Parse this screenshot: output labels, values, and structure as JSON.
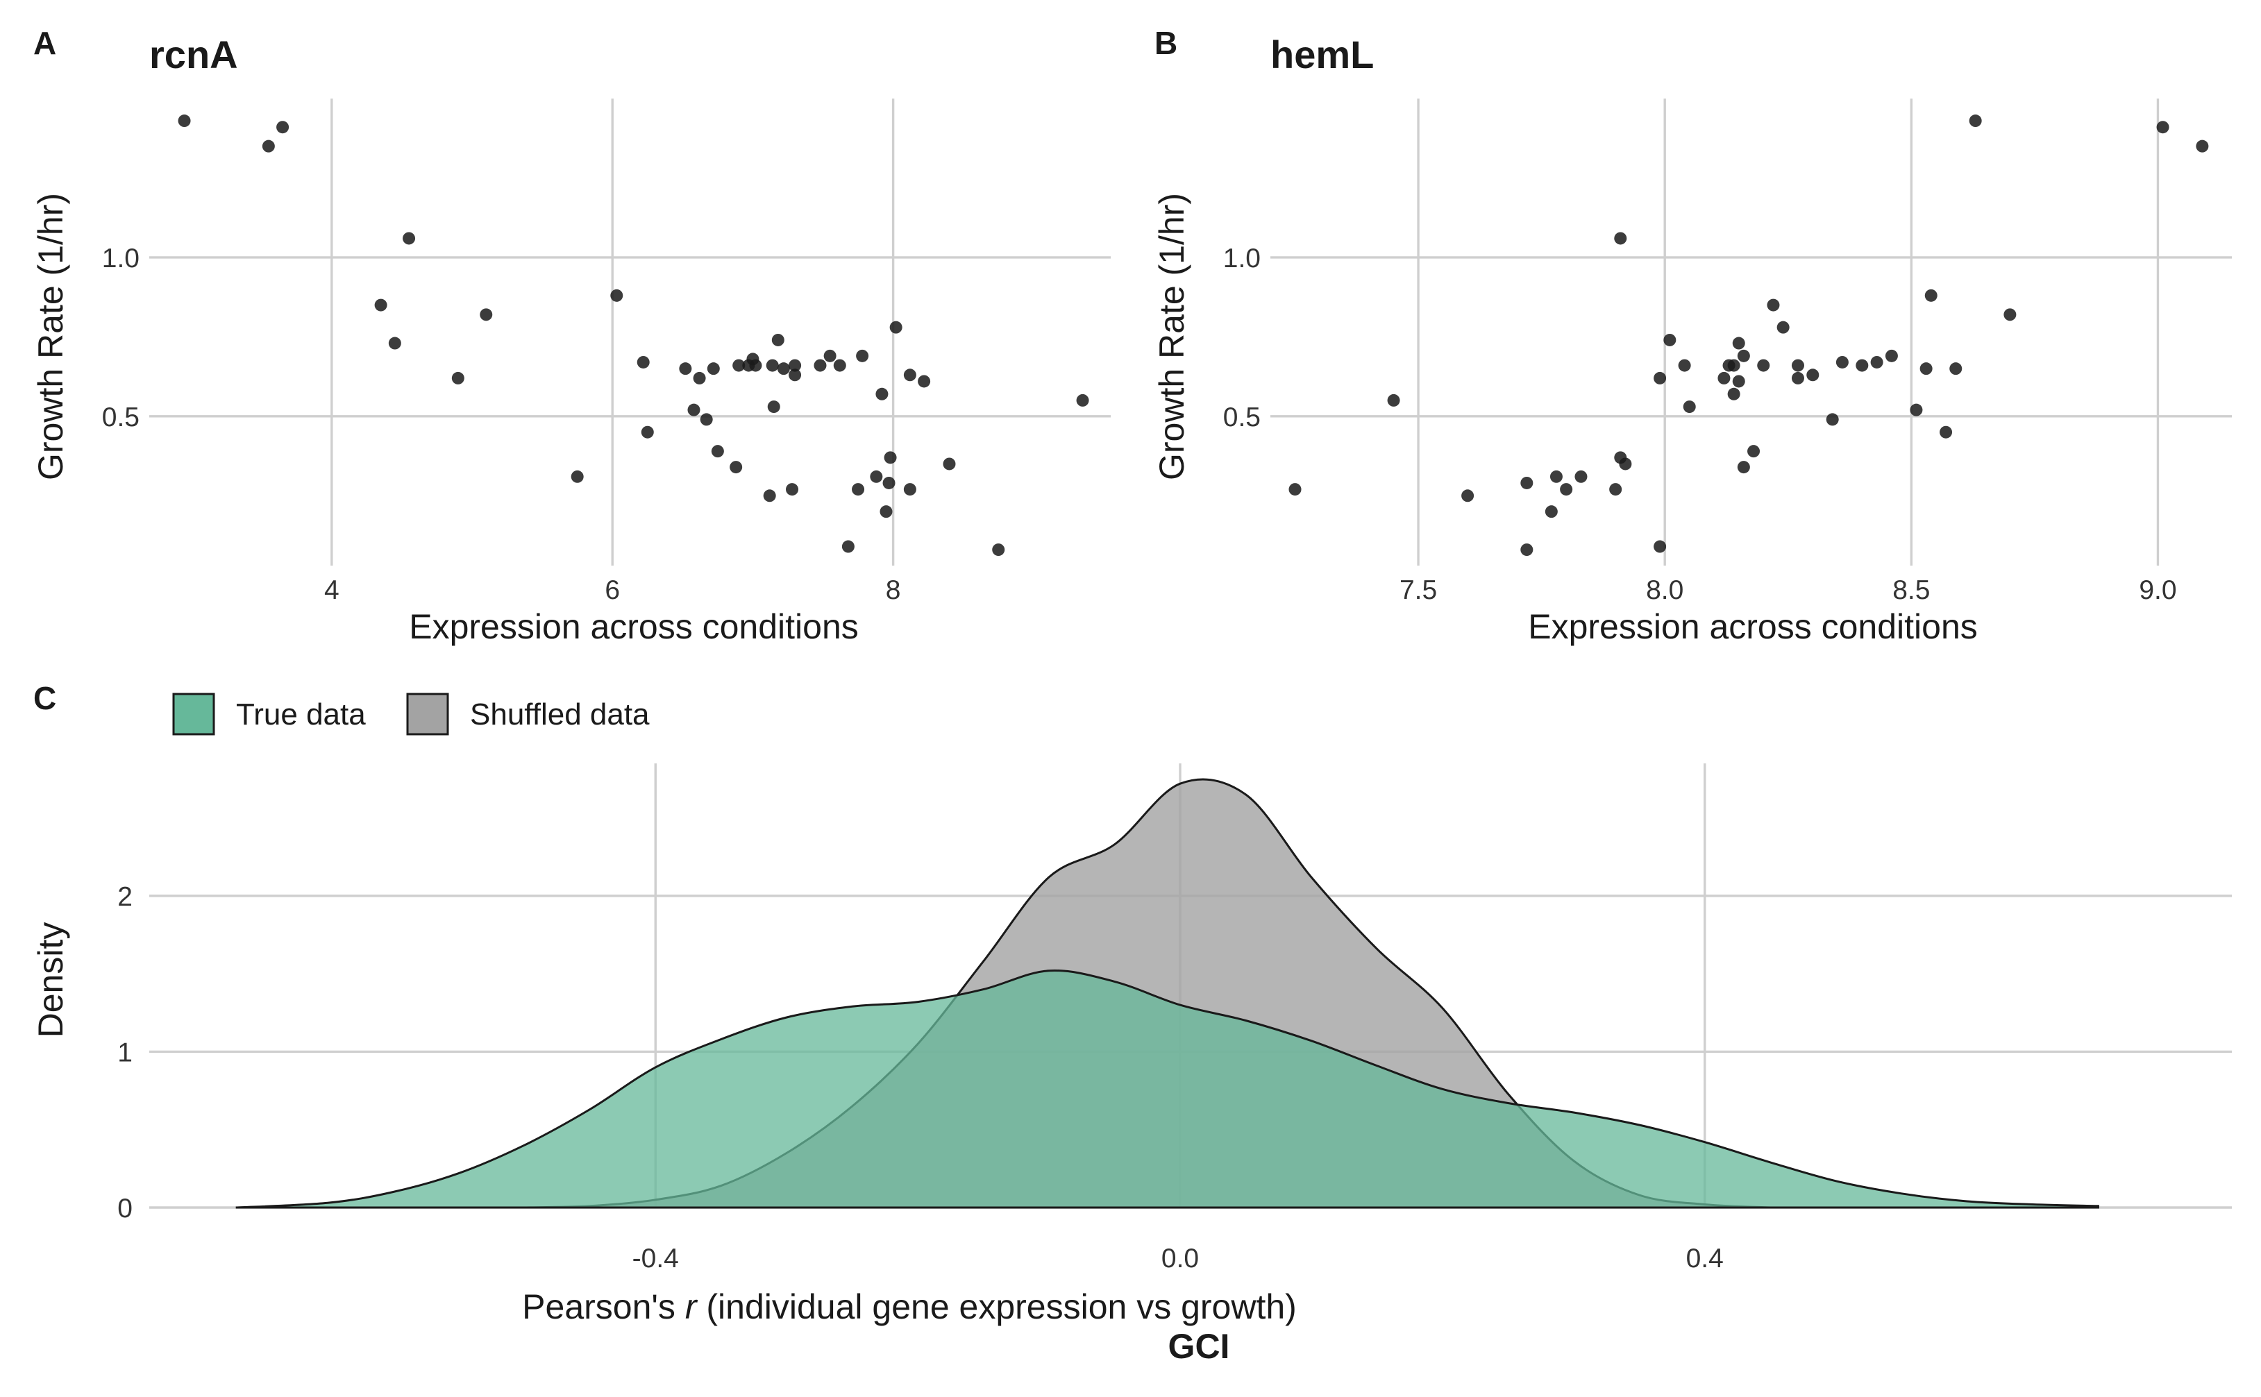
{
  "panels": {
    "a": {
      "tag": "A",
      "title": "rcnA"
    },
    "b": {
      "tag": "B",
      "title": "hemL"
    },
    "c": {
      "tag": "C",
      "footer": "GCI"
    }
  },
  "colors": {
    "point": "#1a1a1a",
    "true_fill": "#66b89a",
    "shuffled_fill": "#a3a3a3",
    "overlap_note": "true and shuffled densities are drawn semi-transparent"
  },
  "chart_data": [
    {
      "type": "scatter",
      "title": "rcnA",
      "xlabel": "Expression across conditions",
      "ylabel": "Growth Rate (1/hr)",
      "xlim": [
        2.7,
        9.55
      ],
      "ylim": [
        0.03,
        1.5
      ],
      "xticks": [
        "4",
        "6",
        "8"
      ],
      "xtick_values": [
        4,
        6,
        8
      ],
      "yticks": [
        "0.5",
        "1.0"
      ],
      "ytick_values": [
        0.5,
        1.0
      ],
      "grid": true,
      "points": [
        [
          2.95,
          1.43
        ],
        [
          3.55,
          1.35
        ],
        [
          3.65,
          1.41
        ],
        [
          4.35,
          0.85
        ],
        [
          4.45,
          0.73
        ],
        [
          4.55,
          1.06
        ],
        [
          4.9,
          0.62
        ],
        [
          5.1,
          0.82
        ],
        [
          5.75,
          0.31
        ],
        [
          6.03,
          0.88
        ],
        [
          6.22,
          0.67
        ],
        [
          6.25,
          0.45
        ],
        [
          6.52,
          0.65
        ],
        [
          6.58,
          0.52
        ],
        [
          6.62,
          0.62
        ],
        [
          6.67,
          0.49
        ],
        [
          6.72,
          0.65
        ],
        [
          6.75,
          0.39
        ],
        [
          6.88,
          0.34
        ],
        [
          6.9,
          0.66
        ],
        [
          6.97,
          0.66
        ],
        [
          7.0,
          0.68
        ],
        [
          7.02,
          0.66
        ],
        [
          7.12,
          0.25
        ],
        [
          7.14,
          0.66
        ],
        [
          7.15,
          0.53
        ],
        [
          7.18,
          0.74
        ],
        [
          7.22,
          0.65
        ],
        [
          7.28,
          0.27
        ],
        [
          7.3,
          0.63
        ],
        [
          7.3,
          0.66
        ],
        [
          7.48,
          0.66
        ],
        [
          7.55,
          0.69
        ],
        [
          7.62,
          0.66
        ],
        [
          7.68,
          0.09
        ],
        [
          7.75,
          0.27
        ],
        [
          7.78,
          0.69
        ],
        [
          7.88,
          0.31
        ],
        [
          7.92,
          0.57
        ],
        [
          7.95,
          0.2
        ],
        [
          7.97,
          0.29
        ],
        [
          7.98,
          0.37
        ],
        [
          8.02,
          0.78
        ],
        [
          8.12,
          0.27
        ],
        [
          8.12,
          0.63
        ],
        [
          8.22,
          0.61
        ],
        [
          8.4,
          0.35
        ],
        [
          8.75,
          0.08
        ],
        [
          9.35,
          0.55
        ]
      ]
    },
    {
      "type": "scatter",
      "title": "hemL",
      "xlabel": "Expression across conditions",
      "ylabel": "Growth Rate (1/hr)",
      "xlim": [
        7.2,
        9.15
      ],
      "ylim": [
        0.03,
        1.5
      ],
      "xticks": [
        "7.5",
        "8.0",
        "8.5",
        "9.0"
      ],
      "xtick_values": [
        7.5,
        8.0,
        8.5,
        9.0
      ],
      "yticks": [
        "0.5",
        "1.0"
      ],
      "yticks_values_note": "",
      "ytick_values": [
        0.5,
        1.0
      ],
      "grid": true,
      "points": [
        [
          7.25,
          0.27
        ],
        [
          7.45,
          0.55
        ],
        [
          7.6,
          0.25
        ],
        [
          7.72,
          0.08
        ],
        [
          7.72,
          0.29
        ],
        [
          7.77,
          0.2
        ],
        [
          7.78,
          0.31
        ],
        [
          7.8,
          0.27
        ],
        [
          7.83,
          0.31
        ],
        [
          7.9,
          0.27
        ],
        [
          7.91,
          0.37
        ],
        [
          7.92,
          0.35
        ],
        [
          7.91,
          1.06
        ],
        [
          7.99,
          0.09
        ],
        [
          7.99,
          0.62
        ],
        [
          8.01,
          0.74
        ],
        [
          8.04,
          0.66
        ],
        [
          8.05,
          0.53
        ],
        [
          8.12,
          0.62
        ],
        [
          8.13,
          0.66
        ],
        [
          8.14,
          0.66
        ],
        [
          8.14,
          0.57
        ],
        [
          8.15,
          0.61
        ],
        [
          8.15,
          0.73
        ],
        [
          8.16,
          0.69
        ],
        [
          8.16,
          0.34
        ],
        [
          8.18,
          0.39
        ],
        [
          8.2,
          0.66
        ],
        [
          8.22,
          0.85
        ],
        [
          8.24,
          0.78
        ],
        [
          8.27,
          0.62
        ],
        [
          8.27,
          0.66
        ],
        [
          8.3,
          0.63
        ],
        [
          8.34,
          0.49
        ],
        [
          8.36,
          0.67
        ],
        [
          8.4,
          0.66
        ],
        [
          8.43,
          0.67
        ],
        [
          8.46,
          0.69
        ],
        [
          8.51,
          0.52
        ],
        [
          8.53,
          0.65
        ],
        [
          8.54,
          0.88
        ],
        [
          8.57,
          0.45
        ],
        [
          8.59,
          0.65
        ],
        [
          8.63,
          1.43
        ],
        [
          8.7,
          0.82
        ],
        [
          9.01,
          1.41
        ],
        [
          9.09,
          1.35
        ]
      ]
    },
    {
      "type": "area",
      "xlabel_prefix": "Pearson's ",
      "xlabel_italic": "r",
      "xlabel_suffix": " (individual gene expression vs growth)",
      "ylabel": "Density",
      "xlim": [
        -0.75,
        0.75
      ],
      "ylim": [
        0,
        2.85
      ],
      "xticks": [
        "-0.4",
        "0.0",
        "0.4"
      ],
      "xtick_values": [
        -0.4,
        0.0,
        0.4
      ],
      "yticks": [
        "0",
        "1",
        "2"
      ],
      "ytick_values": [
        0,
        1,
        2
      ],
      "grid": true,
      "legend_position": "top-left",
      "series": [
        {
          "name": "True data",
          "x": [
            -0.72,
            -0.65,
            -0.6,
            -0.55,
            -0.5,
            -0.45,
            -0.4,
            -0.35,
            -0.3,
            -0.25,
            -0.2,
            -0.15,
            -0.1,
            -0.05,
            0.0,
            0.05,
            0.1,
            0.15,
            0.2,
            0.25,
            0.3,
            0.35,
            0.4,
            0.45,
            0.5,
            0.55,
            0.6,
            0.65,
            0.7
          ],
          "y": [
            0.0,
            0.03,
            0.1,
            0.22,
            0.4,
            0.63,
            0.9,
            1.08,
            1.22,
            1.29,
            1.32,
            1.4,
            1.52,
            1.45,
            1.3,
            1.2,
            1.07,
            0.91,
            0.76,
            0.67,
            0.61,
            0.53,
            0.42,
            0.29,
            0.17,
            0.09,
            0.04,
            0.02,
            0.01
          ]
        },
        {
          "name": "Shuffled data",
          "x": [
            -0.5,
            -0.45,
            -0.4,
            -0.35,
            -0.3,
            -0.25,
            -0.2,
            -0.15,
            -0.1,
            -0.05,
            0.0,
            0.05,
            0.1,
            0.15,
            0.2,
            0.25,
            0.3,
            0.35,
            0.4,
            0.45
          ],
          "y": [
            0.0,
            0.01,
            0.05,
            0.14,
            0.35,
            0.65,
            1.05,
            1.58,
            2.12,
            2.33,
            2.72,
            2.65,
            2.12,
            1.66,
            1.28,
            0.73,
            0.3,
            0.08,
            0.02,
            0.0
          ]
        }
      ]
    }
  ]
}
